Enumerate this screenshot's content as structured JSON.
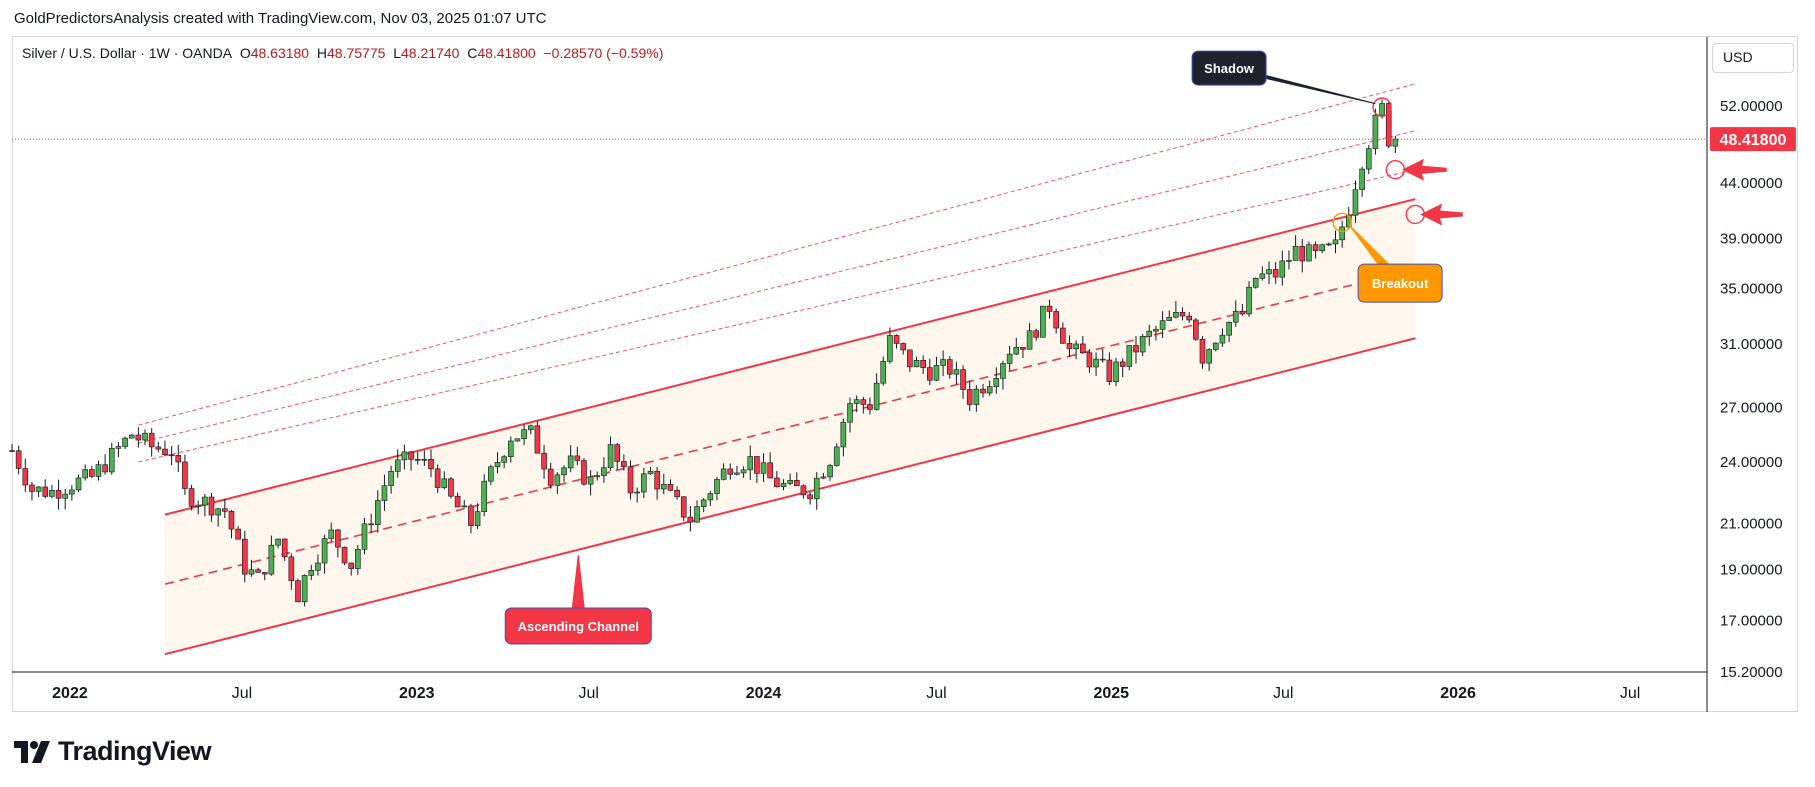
{
  "header": {
    "attribution": "GoldPredictorsAnalysis created with TradingView.com, Nov 03, 2025 01:07 UTC"
  },
  "legend": {
    "symbol": "Silver / U.S. Dollar · 1W · OANDA",
    "open_label": "O",
    "open": "48.63180",
    "high_label": "H",
    "high": "48.75775",
    "low_label": "L",
    "low": "48.21740",
    "close_label": "C",
    "close": "48.41800",
    "change": "−0.28570 (−0.59%)"
  },
  "currency": "USD",
  "brand": {
    "name": "TradingView"
  },
  "colors": {
    "up": "#4caf50",
    "down": "#f23645",
    "channel": "#f23645",
    "price_label": "#f23645"
  },
  "chart_data": {
    "type": "candlestick",
    "title": "Silver / U.S. Dollar · 1W · OANDA",
    "scale": "log",
    "ylim": [
      15.2,
      57.5
    ],
    "y_ticks": [
      52,
      44,
      39,
      35,
      31,
      27,
      24,
      21,
      19,
      17,
      15.2
    ],
    "y_tick_labels": [
      "52.00000",
      "44.00000",
      "39.00000",
      "35.00000",
      "31.00000",
      "27.00000",
      "24.00000",
      "21.00000",
      "19.00000",
      "17.00000",
      "15.20000"
    ],
    "x_range": [
      "2021-11-01",
      "2026-09-20"
    ],
    "x_ticks": [
      {
        "date": "2022-01-01",
        "label": "2022",
        "bold": true
      },
      {
        "date": "2022-07-01",
        "label": "Jul",
        "bold": false
      },
      {
        "date": "2023-01-01",
        "label": "2023",
        "bold": true
      },
      {
        "date": "2023-07-01",
        "label": "Jul",
        "bold": false
      },
      {
        "date": "2024-01-01",
        "label": "2024",
        "bold": true
      },
      {
        "date": "2024-07-01",
        "label": "Jul",
        "bold": false
      },
      {
        "date": "2025-01-01",
        "label": "2025",
        "bold": true
      },
      {
        "date": "2025-07-01",
        "label": "Jul",
        "bold": false
      },
      {
        "date": "2026-01-01",
        "label": "2026",
        "bold": true
      },
      {
        "date": "2026-07-01",
        "label": "Jul",
        "bold": false
      }
    ],
    "current_price": 48.418,
    "current_price_label": "48.41800",
    "close_path": [
      [
        "2021-11-01",
        24.6
      ],
      [
        "2021-11-22",
        22.6
      ],
      [
        "2021-12-13",
        22.5
      ],
      [
        "2022-01-03",
        22.9
      ],
      [
        "2022-01-24",
        23.2
      ],
      [
        "2022-02-14",
        24.3
      ],
      [
        "2022-03-07",
        25.5
      ],
      [
        "2022-03-28",
        24.8
      ],
      [
        "2022-04-18",
        24.6
      ],
      [
        "2022-05-02",
        22.4
      ],
      [
        "2022-05-23",
        22.0
      ],
      [
        "2022-06-13",
        21.6
      ],
      [
        "2022-07-04",
        19.1
      ],
      [
        "2022-07-18",
        18.6
      ],
      [
        "2022-08-08",
        20.3
      ],
      [
        "2022-08-29",
        18.0
      ],
      [
        "2022-09-12",
        19.3
      ],
      [
        "2022-10-03",
        20.5
      ],
      [
        "2022-10-24",
        19.2
      ],
      [
        "2022-11-14",
        21.3
      ],
      [
        "2022-12-05",
        23.6
      ],
      [
        "2022-12-26",
        24.2
      ],
      [
        "2023-01-16",
        23.7
      ],
      [
        "2023-02-06",
        22.1
      ],
      [
        "2023-02-27",
        21.0
      ],
      [
        "2023-03-20",
        23.4
      ],
      [
        "2023-04-10",
        25.4
      ],
      [
        "2023-05-01",
        25.5
      ],
      [
        "2023-05-22",
        23.3
      ],
      [
        "2023-06-12",
        23.9
      ],
      [
        "2023-07-03",
        23.0
      ],
      [
        "2023-07-24",
        24.6
      ],
      [
        "2023-08-14",
        22.6
      ],
      [
        "2023-09-04",
        23.4
      ],
      [
        "2023-09-25",
        22.2
      ],
      [
        "2023-10-16",
        21.2
      ],
      [
        "2023-11-06",
        22.6
      ],
      [
        "2023-11-27",
        23.9
      ],
      [
        "2023-12-18",
        24.1
      ],
      [
        "2024-01-08",
        23.1
      ],
      [
        "2024-01-29",
        22.6
      ],
      [
        "2024-02-19",
        22.6
      ],
      [
        "2024-03-11",
        24.2
      ],
      [
        "2024-04-01",
        27.3
      ],
      [
        "2024-04-22",
        27.2
      ],
      [
        "2024-05-13",
        31.2
      ],
      [
        "2024-06-03",
        29.8
      ],
      [
        "2024-06-24",
        29.3
      ],
      [
        "2024-07-15",
        29.4
      ],
      [
        "2024-08-05",
        27.6
      ],
      [
        "2024-08-26",
        28.8
      ],
      [
        "2024-09-16",
        30.7
      ],
      [
        "2024-10-07",
        31.4
      ],
      [
        "2024-10-28",
        33.7
      ],
      [
        "2024-11-18",
        30.6
      ],
      [
        "2024-12-09",
        30.0
      ],
      [
        "2024-12-30",
        29.0
      ],
      [
        "2025-01-20",
        30.3
      ],
      [
        "2025-02-10",
        31.6
      ],
      [
        "2025-03-03",
        32.6
      ],
      [
        "2025-03-24",
        33.2
      ],
      [
        "2025-04-07",
        30.2
      ],
      [
        "2025-04-28",
        32.2
      ],
      [
        "2025-05-19",
        33.1
      ],
      [
        "2025-06-02",
        35.8
      ],
      [
        "2025-06-23",
        36.1
      ],
      [
        "2025-07-14",
        38.0
      ],
      [
        "2025-08-04",
        37.5
      ],
      [
        "2025-08-25",
        38.3
      ],
      [
        "2025-09-08",
        41.8
      ],
      [
        "2025-09-22",
        46.4
      ],
      [
        "2025-10-06",
        50.1
      ],
      [
        "2025-10-13",
        51.7
      ],
      [
        "2025-10-20",
        48.5
      ],
      [
        "2025-10-27",
        48.4
      ]
    ],
    "channel": {
      "upper": [
        [
          "2022-04-11",
          21.4
        ],
        [
          "2025-11-17",
          42.5
        ]
      ],
      "lower": [
        [
          "2022-04-11",
          15.8
        ],
        [
          "2025-11-17",
          31.4
        ]
      ],
      "median": [
        [
          "2022-04-11",
          18.4
        ],
        [
          "2025-11-17",
          36.5
        ]
      ]
    },
    "outer_lines": [
      [
        [
          "2022-03-14",
          26.0
        ],
        [
          "2025-11-17",
          54.6
        ]
      ],
      [
        [
          "2022-03-14",
          25.0
        ],
        [
          "2025-11-17",
          49.3
        ]
      ],
      [
        [
          "2022-03-14",
          24.0
        ],
        [
          "2025-11-17",
          45.3
        ]
      ]
    ],
    "annotations": [
      {
        "text": "Shadow",
        "date": "2025-05-05",
        "price": 56.5,
        "style": "dark"
      },
      {
        "text": "Breakout",
        "date": "2025-11-01",
        "price": 35.4,
        "style": "orange"
      },
      {
        "text": "Ascending Channel",
        "date": "2023-06-20",
        "price": 16.8,
        "style": "red"
      }
    ],
    "circles": [
      {
        "date": "2025-10-13",
        "price": 51.9,
        "color": "#f23645"
      },
      {
        "date": "2025-10-27",
        "price": 45.3,
        "color": "#f23645"
      },
      {
        "date": "2025-11-17",
        "price": 41.1,
        "color": "#f23645"
      },
      {
        "date": "2025-09-01",
        "price": 40.4,
        "color": "#ff9800"
      }
    ],
    "arrows": [
      {
        "date": "2025-12-20",
        "price": 45.3,
        "tip_date": "2025-11-03"
      },
      {
        "date": "2026-01-06",
        "price": 41.1,
        "tip_date": "2025-11-22"
      }
    ]
  }
}
